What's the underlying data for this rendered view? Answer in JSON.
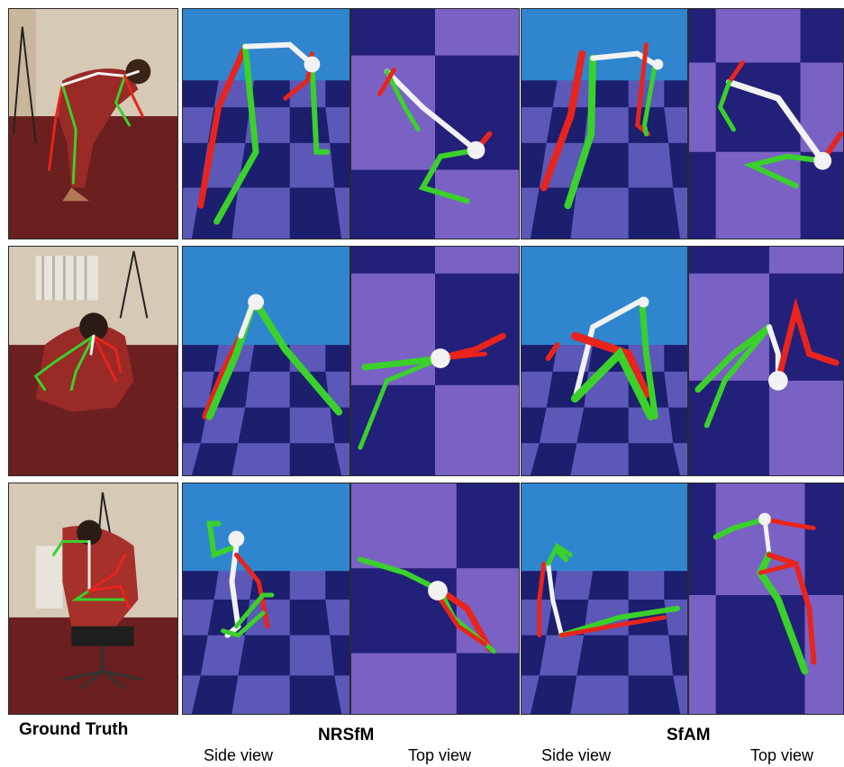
{
  "captions": {
    "ground_truth": "Ground Truth",
    "method_nrsfm": "NRSfM",
    "method_sfam": "SfAM",
    "side_view_1": "Side view",
    "top_view_1": "Top view",
    "side_view_2": "Side view",
    "top_view_2": "Top view"
  },
  "colors": {
    "sky": "#2f86cf",
    "floor_dark": "#1c1e6e",
    "floor_light": "#5b58b8",
    "top_dark": "#232079",
    "top_light": "#7a62c4",
    "photo_wall": "#cfc2ad",
    "photo_carpet": "#6b1f1f",
    "skeleton_left": "#e8241c",
    "skeleton_right": "#3ad12b",
    "skeleton_spine": "#f2f2f2"
  },
  "rows": [
    {
      "photo": "ground-truth-photo-1",
      "nrsfm_side": "nrsfm-side-view-1",
      "nrsfm_top": "nrsfm-top-view-1",
      "sfam_side": "sfam-side-view-1",
      "sfam_top": "sfam-top-view-1"
    },
    {
      "photo": "ground-truth-photo-2",
      "nrsfm_side": "nrsfm-side-view-2",
      "nrsfm_top": "nrsfm-top-view-2",
      "sfam_side": "sfam-side-view-2",
      "sfam_top": "sfam-top-view-2"
    },
    {
      "photo": "ground-truth-photo-3",
      "nrsfm_side": "nrsfm-side-view-3",
      "nrsfm_top": "nrsfm-top-view-3",
      "sfam_side": "sfam-side-view-3",
      "sfam_top": "sfam-top-view-3"
    }
  ]
}
